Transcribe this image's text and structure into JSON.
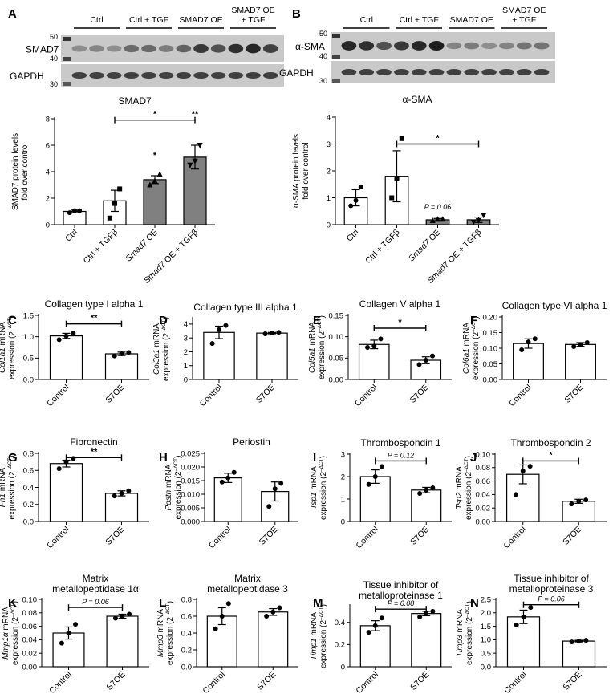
{
  "blots": [
    {
      "letter": "A",
      "groups": [
        "Ctrl",
        "Ctrl + TGF",
        "SMAD7 OE",
        "SMAD7 OE\n+ TGF"
      ],
      "mw_top": "50",
      "mw_mid": "40",
      "mw_bot": "30",
      "bands": [
        "SMAD7",
        "GAPDH"
      ]
    },
    {
      "letter": "B",
      "groups": [
        "Ctrl",
        "Ctrl + TGF",
        "SMAD7 OE",
        "SMAD7 OE\n+ TGF"
      ],
      "mw_top": "50",
      "mw_mid": "40",
      "mw_bot": "30",
      "bands": [
        "α-SMA",
        "GAPDH"
      ]
    }
  ],
  "chart_data": [
    {
      "type": "bar",
      "id": "A",
      "letter": "",
      "title": "SMAD7",
      "ylabel": [
        "SMAD7 protein levels",
        "fold over control"
      ],
      "categories": [
        "Ctrl",
        "Ctrl + TGFβ",
        "Smad7 OE",
        "Smad7 OE + TGFβ"
      ],
      "values": [
        1.0,
        1.8,
        3.4,
        5.1
      ],
      "errors": [
        0.1,
        0.8,
        0.3,
        0.9
      ],
      "points": [
        [
          0.9,
          1.05,
          1.05
        ],
        [
          0.5,
          1.6,
          2.7
        ],
        [
          3.0,
          3.3,
          3.8
        ],
        [
          4.5,
          4.8,
          6.0
        ]
      ],
      "fills": [
        "#ffffff",
        "#ffffff",
        "#808080",
        "#808080"
      ],
      "markers": [
        "circle",
        "square",
        "triangle",
        "tri-down"
      ],
      "ylim": [
        0,
        8
      ],
      "yticks": [
        0,
        2,
        4,
        6,
        8
      ],
      "tick_labels": [
        "0",
        "2",
        "4",
        "6",
        "8"
      ],
      "italic_labels": true,
      "annotations": [
        {
          "text": "*",
          "x1": 1,
          "x2": 3,
          "y": 7.9
        },
        {
          "text": "*",
          "x1": 2,
          "x2": 2,
          "y": 4.8,
          "noline": true
        },
        {
          "text": "**",
          "x1": 3,
          "x2": 3,
          "y": 7.9,
          "noline": true
        }
      ]
    },
    {
      "type": "bar",
      "id": "B",
      "letter": "",
      "title": "α-SMA",
      "ylabel": [
        "α-SMA protein levels",
        "fold over control"
      ],
      "categories": [
        "Ctrl",
        "Ctrl + TGFβ",
        "Smad7 OE",
        "Smad7 OE + TGFβ"
      ],
      "values": [
        1.0,
        1.8,
        0.18,
        0.18
      ],
      "errors": [
        0.3,
        0.95,
        0.05,
        0.1
      ],
      "points": [
        [
          0.7,
          0.9,
          1.4
        ],
        [
          1.0,
          1.7,
          3.2
        ],
        [
          0.15,
          0.2,
          0.2
        ],
        [
          0.1,
          0.15,
          0.35
        ]
      ],
      "fills": [
        "#ffffff",
        "#ffffff",
        "#808080",
        "#808080"
      ],
      "markers": [
        "circle",
        "square",
        "triangle",
        "tri-down"
      ],
      "ylim": [
        0,
        4
      ],
      "yticks": [
        0,
        1,
        2,
        3,
        4
      ],
      "tick_labels": [
        "0",
        "1",
        "2",
        "3",
        "4"
      ],
      "italic_labels": true,
      "annotations": [
        {
          "text": "*",
          "x1": 1,
          "x2": 3,
          "y": 3.0
        },
        {
          "text": "P = 0.06",
          "x1": 2,
          "x2": 2,
          "y": 0.45,
          "noline": true,
          "italic": true
        }
      ]
    },
    {
      "type": "bar",
      "id": "C",
      "letter": "C",
      "title": "Collagen type I alpha 1",
      "ylabel_gene": "Col1a1",
      "ylabel_rest": " mRNA",
      "ylabel2": "expression (2",
      "categories": [
        "Control",
        "S7OE"
      ],
      "values": [
        1.02,
        0.6
      ],
      "errors": [
        0.06,
        0.04
      ],
      "points": [
        [
          0.93,
          1.02,
          1.08
        ],
        [
          0.55,
          0.6,
          0.63
        ]
      ],
      "ylim": [
        0,
        1.5
      ],
      "yticks": [
        0,
        0.5,
        1.0,
        1.5
      ],
      "tick_labels": [
        "0.0",
        "0.5",
        "1.0",
        "1.5"
      ],
      "annotations": [
        {
          "text": "**",
          "x1": 0,
          "x2": 1,
          "y": 1.3
        }
      ]
    },
    {
      "type": "bar",
      "id": "D",
      "letter": "D",
      "title": "Collagen type III alpha 1",
      "ylabel_gene": "Col3a1",
      "ylabel_rest": " mRNA",
      "ylabel2": "expression (2",
      "categories": [
        "Control",
        "S7OE"
      ],
      "values": [
        3.4,
        3.35
      ],
      "errors": [
        0.45,
        0.05
      ],
      "points": [
        [
          2.6,
          3.6,
          3.9
        ],
        [
          3.3,
          3.35,
          3.4
        ]
      ],
      "ylim": [
        0,
        4.4
      ],
      "yticks": [
        0,
        1,
        2,
        3,
        4
      ],
      "tick_labels": [
        "0",
        "1",
        "2",
        "3",
        "4"
      ],
      "annotations": []
    },
    {
      "type": "bar",
      "id": "E",
      "letter": "E",
      "title": "Collagen V alpha 1",
      "ylabel_gene": "Col5a1",
      "ylabel_rest": " mRNA",
      "ylabel2": "expression (2",
      "categories": [
        "Control",
        "S7OE"
      ],
      "values": [
        0.082,
        0.045
      ],
      "errors": [
        0.01,
        0.008
      ],
      "points": [
        [
          0.075,
          0.078,
          0.095
        ],
        [
          0.035,
          0.045,
          0.055
        ]
      ],
      "ylim": [
        0,
        0.15
      ],
      "yticks": [
        0,
        0.05,
        0.1,
        0.15
      ],
      "tick_labels": [
        "0.00",
        "0.05",
        "0.10",
        "0.15"
      ],
      "annotations": [
        {
          "text": "*",
          "x1": 0,
          "x2": 1,
          "y": 0.12
        }
      ]
    },
    {
      "type": "bar",
      "id": "F",
      "letter": "F",
      "title": "Collagen type VI alpha 1",
      "ylabel_gene": "Col6a1",
      "ylabel_rest": " mRNA",
      "ylabel2": "expression (2",
      "categories": [
        "Control",
        "S7OE"
      ],
      "values": [
        0.115,
        0.112
      ],
      "errors": [
        0.015,
        0.006
      ],
      "points": [
        [
          0.095,
          0.12,
          0.13
        ],
        [
          0.105,
          0.112,
          0.118
        ]
      ],
      "ylim": [
        0,
        0.2
      ],
      "yticks": [
        0,
        0.05,
        0.1,
        0.15,
        0.2
      ],
      "tick_labels": [
        "0.00",
        "0.05",
        "0.10",
        "0.15",
        "0.20"
      ],
      "annotations": []
    },
    {
      "type": "bar",
      "id": "G",
      "letter": "G",
      "title": "Fibronectin",
      "ylabel_gene": "Fn1",
      "ylabel_rest": " mRNA",
      "ylabel2": "expression (2",
      "categories": [
        "Control",
        "S7OE"
      ],
      "values": [
        0.68,
        0.33
      ],
      "errors": [
        0.04,
        0.03
      ],
      "points": [
        [
          0.62,
          0.7,
          0.74
        ],
        [
          0.3,
          0.33,
          0.36
        ]
      ],
      "ylim": [
        0,
        0.8
      ],
      "yticks": [
        0,
        0.2,
        0.4,
        0.6,
        0.8
      ],
      "tick_labels": [
        "0.0",
        "0.2",
        "0.4",
        "0.6",
        "0.8"
      ],
      "annotations": [
        {
          "text": "**",
          "x1": 0,
          "x2": 1,
          "y": 0.75
        }
      ]
    },
    {
      "type": "bar",
      "id": "H",
      "letter": "H",
      "title": "Periostin",
      "ylabel_gene": "Postn",
      "ylabel_rest": " mRNA",
      "ylabel2": "expression (2",
      "categories": [
        "Control",
        "S7OE"
      ],
      "values": [
        0.016,
        0.011
      ],
      "errors": [
        0.0017,
        0.0035
      ],
      "points": [
        [
          0.0145,
          0.016,
          0.018
        ],
        [
          0.0055,
          0.012,
          0.014
        ]
      ],
      "ylim": [
        0,
        0.025
      ],
      "yticks": [
        0,
        0.005,
        0.01,
        0.015,
        0.02,
        0.025
      ],
      "tick_labels": [
        "0.000",
        "0.005",
        "0.010",
        "0.015",
        "0.020",
        "0.025"
      ],
      "annotations": []
    },
    {
      "type": "bar",
      "id": "I",
      "letter": "I",
      "title": "Thrombospondin 1",
      "ylabel_gene": "Tsp1",
      "ylabel_rest": " mRNA",
      "ylabel2": "expression (2",
      "categories": [
        "Control",
        "S7OE"
      ],
      "values": [
        2.0,
        1.4
      ],
      "errors": [
        0.3,
        0.12
      ],
      "points": [
        [
          1.65,
          2.0,
          2.45
        ],
        [
          1.25,
          1.4,
          1.5
        ]
      ],
      "ylim": [
        0,
        3
      ],
      "yticks": [
        0,
        1,
        2,
        3
      ],
      "tick_labels": [
        "0",
        "1",
        "2",
        "3"
      ],
      "annotations": [
        {
          "text": "P = 0.12",
          "x1": 0,
          "x2": 1,
          "y": 2.7,
          "italic": true
        }
      ]
    },
    {
      "type": "bar",
      "id": "J",
      "letter": "J",
      "title": "Thrombospondin 2",
      "ylabel_gene": "Tsp2",
      "ylabel_rest": " mRNA",
      "ylabel2": "expression (2",
      "categories": [
        "Control",
        "S7OE"
      ],
      "values": [
        0.07,
        0.03
      ],
      "errors": [
        0.014,
        0.003
      ],
      "points": [
        [
          0.04,
          0.075,
          0.082
        ],
        [
          0.026,
          0.03,
          0.032
        ]
      ],
      "ylim": [
        0,
        0.1
      ],
      "yticks": [
        0,
        0.02,
        0.04,
        0.06,
        0.08,
        0.1
      ],
      "tick_labels": [
        "0.00",
        "0.02",
        "0.04",
        "0.06",
        "0.08",
        "0.10"
      ],
      "annotations": [
        {
          "text": "*",
          "x1": 0,
          "x2": 1,
          "y": 0.09
        }
      ]
    },
    {
      "type": "bar",
      "id": "K",
      "letter": "K",
      "title": [
        "Matrix",
        "metallopeptidase 1α"
      ],
      "ylabel_gene": "Mmp1α",
      "ylabel_rest": " mRNA",
      "ylabel2": "expression (2",
      "categories": [
        "Control",
        "S7OE"
      ],
      "values": [
        0.05,
        0.075
      ],
      "errors": [
        0.009,
        0.003
      ],
      "points": [
        [
          0.035,
          0.05,
          0.063
        ],
        [
          0.072,
          0.075,
          0.078
        ]
      ],
      "ylim": [
        0,
        0.1
      ],
      "yticks": [
        0,
        0.02,
        0.04,
        0.06,
        0.08,
        0.1
      ],
      "tick_labels": [
        "0.00",
        "0.02",
        "0.04",
        "0.06",
        "0.08",
        "0.10"
      ],
      "annotations": [
        {
          "text": "P = 0.06",
          "x1": 0,
          "x2": 1,
          "y": 0.088,
          "italic": true
        }
      ]
    },
    {
      "type": "bar",
      "id": "L",
      "letter": "L",
      "title": [
        "Matrix",
        "metallopeptidase 3"
      ],
      "ylabel_gene": "Mmp3",
      "ylabel_rest": " mRNA",
      "ylabel2": "expression (2",
      "categories": [
        "Control",
        "S7OE"
      ],
      "values": [
        0.6,
        0.65
      ],
      "errors": [
        0.1,
        0.04
      ],
      "points": [
        [
          0.45,
          0.6,
          0.75
        ],
        [
          0.6,
          0.65,
          0.7
        ]
      ],
      "ylim": [
        0,
        0.8
      ],
      "yticks": [
        0,
        0.2,
        0.4,
        0.6,
        0.8
      ],
      "tick_labels": [
        "0.0",
        "0.2",
        "0.4",
        "0.6",
        "0.8"
      ],
      "annotations": []
    },
    {
      "type": "bar",
      "id": "M",
      "letter": "M",
      "title": [
        "Tissue inhibitor of",
        "metalloproteinase 1"
      ],
      "ylabel_gene": "Timp1",
      "ylabel_rest": " mRNA",
      "ylabel2": "expression (2",
      "categories": [
        "Control",
        "S7OE"
      ],
      "values": [
        0.37,
        0.48
      ],
      "errors": [
        0.045,
        0.02
      ],
      "points": [
        [
          0.31,
          0.37,
          0.44
        ],
        [
          0.45,
          0.48,
          0.5
        ]
      ],
      "ylim": [
        0,
        0.55
      ],
      "yticks": [
        0,
        0.2,
        0.4
      ],
      "tick_labels": [
        "0",
        "0.2",
        "0.4"
      ],
      "annotations": [
        {
          "text": "P = 0.08",
          "x1": 0,
          "x2": 1,
          "y": 0.52,
          "italic": true
        }
      ]
    },
    {
      "type": "bar",
      "id": "N",
      "letter": "N",
      "title": [
        "Tissue inhibitor of",
        "metalloproteinase 3"
      ],
      "ylabel_gene": "Timp3",
      "ylabel_rest": " mRNA",
      "ylabel2": "expression (2",
      "categories": [
        "Control",
        "S7OE"
      ],
      "values": [
        1.85,
        0.95
      ],
      "errors": [
        0.25,
        0.03
      ],
      "points": [
        [
          1.55,
          1.85,
          2.2
        ],
        [
          0.92,
          0.95,
          0.98
        ]
      ],
      "ylim": [
        0,
        2.5
      ],
      "yticks": [
        0,
        0.5,
        1,
        1.5,
        2,
        2.5
      ],
      "tick_labels": [
        "0.0",
        "0.5",
        "1.0",
        "1.5",
        "2.0",
        "2.5"
      ],
      "annotations": [
        {
          "text": "P = 0.06",
          "x1": 0,
          "x2": 1,
          "y": 2.3,
          "italic": true
        }
      ]
    }
  ]
}
